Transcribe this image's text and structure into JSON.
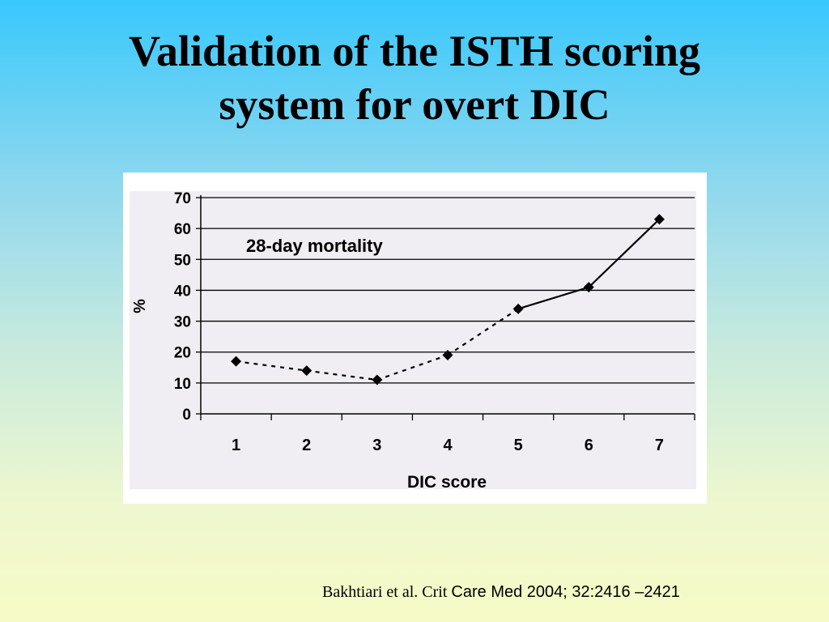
{
  "slide": {
    "title_line1": "Validation of the ISTH scoring",
    "title_line2": "system for overt DIC"
  },
  "citation": {
    "part1": "Bakhtiari et al. Crit ",
    "part2": "Care Med 2004; 32:2416 –2421"
  },
  "chart_data": {
    "type": "line",
    "annotation": "28-day mortality",
    "xlabel": "DIC score",
    "ylabel": "%",
    "categories": [
      "1",
      "2",
      "3",
      "4",
      "5",
      "6",
      "7"
    ],
    "y_ticks": [
      "0",
      "10",
      "20",
      "30",
      "40",
      "50",
      "60",
      "70"
    ],
    "ylim": [
      0,
      70
    ],
    "grid": true,
    "legend": "none",
    "series": [
      {
        "values": [
          17,
          14,
          11,
          19,
          34,
          41,
          63
        ]
      }
    ],
    "line_style": {
      "dashed_segments": [
        0,
        1,
        2,
        3
      ],
      "solid_segments": [
        4,
        5
      ]
    },
    "colors": {
      "plot_background": "#f0eef2",
      "line": "#000000",
      "grid": "#000000"
    }
  }
}
